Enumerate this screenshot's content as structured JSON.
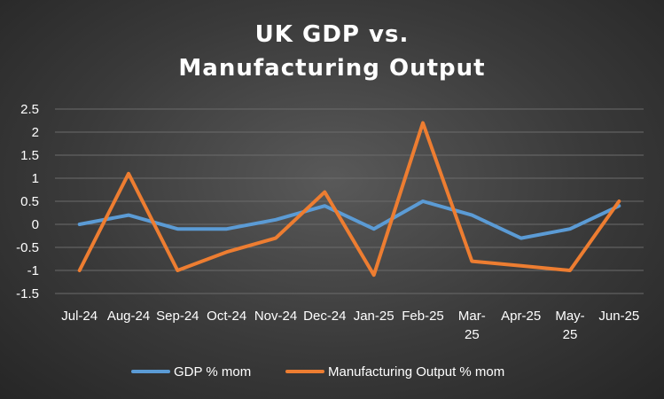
{
  "chart_data": {
    "type": "line",
    "title": [
      "UK GDP vs.",
      "Manufacturing Output"
    ],
    "categories": [
      [
        "Jul-24"
      ],
      [
        "Aug-24"
      ],
      [
        "Sep-24"
      ],
      [
        "Oct-24"
      ],
      [
        "Nov-24"
      ],
      [
        "Dec-24"
      ],
      [
        "Jan-25"
      ],
      [
        "Feb-25"
      ],
      [
        "Mar-",
        "25"
      ],
      [
        "Apr-25"
      ],
      [
        "May-",
        "25"
      ],
      [
        "Jun-25"
      ]
    ],
    "y_ticks": [
      "2.5",
      "2",
      "1.5",
      "1",
      "0.5",
      "0",
      "-0.5",
      "-1",
      "-1.5"
    ],
    "ylim": [
      -1.5,
      2.5
    ],
    "grid": true,
    "legend_position": "bottom",
    "series": [
      {
        "name": "GDP % mom",
        "color": "#5b9bd5",
        "values": [
          0,
          0.2,
          -0.1,
          -0.1,
          0.1,
          0.4,
          -0.1,
          0.5,
          0.2,
          -0.3,
          -0.1,
          0.4
        ]
      },
      {
        "name": "Manufacturing Output % mom",
        "color": "#ed7d31",
        "values": [
          -1.0,
          1.1,
          -1.0,
          -0.6,
          -0.3,
          0.7,
          -1.1,
          2.2,
          -0.8,
          -0.9,
          -1.0,
          0.5
        ]
      }
    ]
  }
}
